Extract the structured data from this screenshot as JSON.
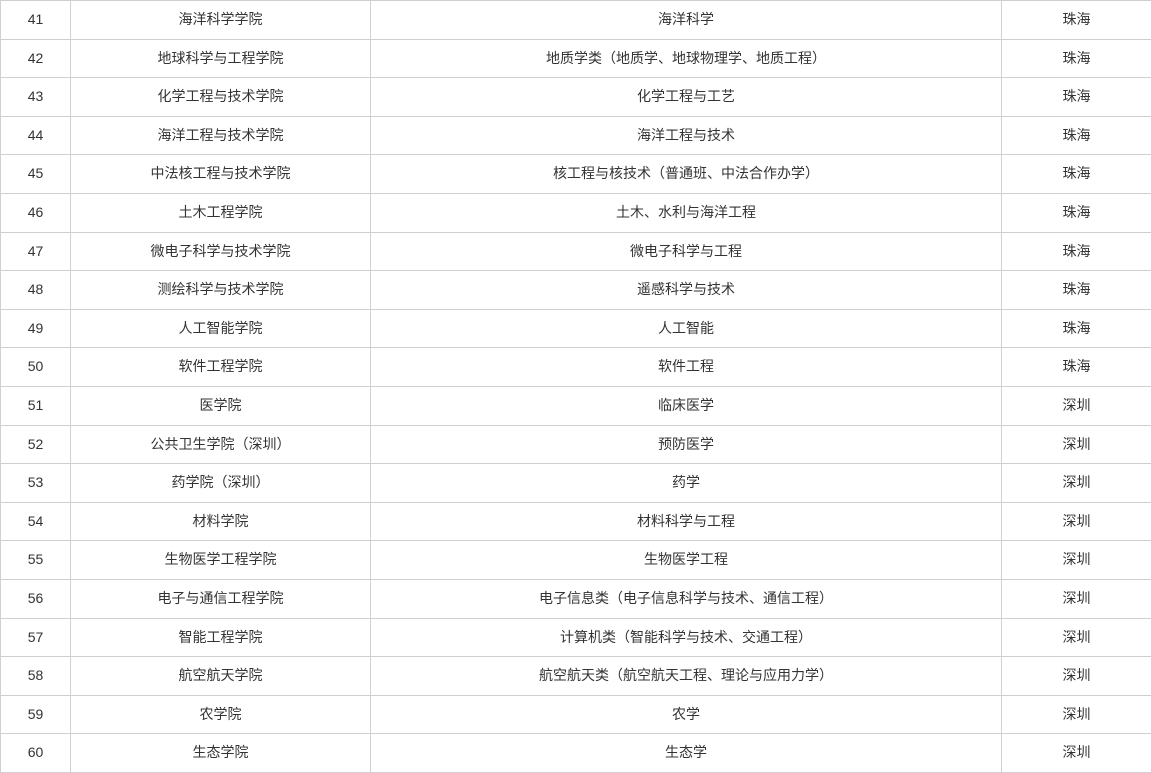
{
  "table": {
    "columns": {
      "widths": [
        "70px",
        "300px",
        "631px",
        "150px"
      ],
      "alignment": "center"
    },
    "border_color": "#d0d0d0",
    "text_color": "#333333",
    "font_size": 14,
    "rows": [
      {
        "index": "41",
        "school": "海洋科学学院",
        "major": "海洋科学",
        "campus": "珠海"
      },
      {
        "index": "42",
        "school": "地球科学与工程学院",
        "major": "地质学类（地质学、地球物理学、地质工程）",
        "campus": "珠海"
      },
      {
        "index": "43",
        "school": "化学工程与技术学院",
        "major": "化学工程与工艺",
        "campus": "珠海"
      },
      {
        "index": "44",
        "school": "海洋工程与技术学院",
        "major": "海洋工程与技术",
        "campus": "珠海"
      },
      {
        "index": "45",
        "school": "中法核工程与技术学院",
        "major": "核工程与核技术（普通班、中法合作办学）",
        "campus": "珠海"
      },
      {
        "index": "46",
        "school": "土木工程学院",
        "major": "土木、水利与海洋工程",
        "campus": "珠海"
      },
      {
        "index": "47",
        "school": "微电子科学与技术学院",
        "major": "微电子科学与工程",
        "campus": "珠海"
      },
      {
        "index": "48",
        "school": "测绘科学与技术学院",
        "major": "遥感科学与技术",
        "campus": "珠海"
      },
      {
        "index": "49",
        "school": "人工智能学院",
        "major": "人工智能",
        "campus": "珠海"
      },
      {
        "index": "50",
        "school": "软件工程学院",
        "major": "软件工程",
        "campus": "珠海"
      },
      {
        "index": "51",
        "school": "医学院",
        "major": "临床医学",
        "campus": "深圳"
      },
      {
        "index": "52",
        "school": "公共卫生学院（深圳）",
        "major": "预防医学",
        "campus": "深圳"
      },
      {
        "index": "53",
        "school": "药学院（深圳）",
        "major": "药学",
        "campus": "深圳"
      },
      {
        "index": "54",
        "school": "材料学院",
        "major": "材料科学与工程",
        "campus": "深圳"
      },
      {
        "index": "55",
        "school": "生物医学工程学院",
        "major": "生物医学工程",
        "campus": "深圳"
      },
      {
        "index": "56",
        "school": "电子与通信工程学院",
        "major": "电子信息类（电子信息科学与技术、通信工程）",
        "campus": "深圳"
      },
      {
        "index": "57",
        "school": "智能工程学院",
        "major": "计算机类（智能科学与技术、交通工程）",
        "campus": "深圳"
      },
      {
        "index": "58",
        "school": "航空航天学院",
        "major": "航空航天类（航空航天工程、理论与应用力学）",
        "campus": "深圳"
      },
      {
        "index": "59",
        "school": "农学院",
        "major": "农学",
        "campus": "深圳"
      },
      {
        "index": "60",
        "school": "生态学院",
        "major": "生态学",
        "campus": "深圳"
      }
    ]
  }
}
